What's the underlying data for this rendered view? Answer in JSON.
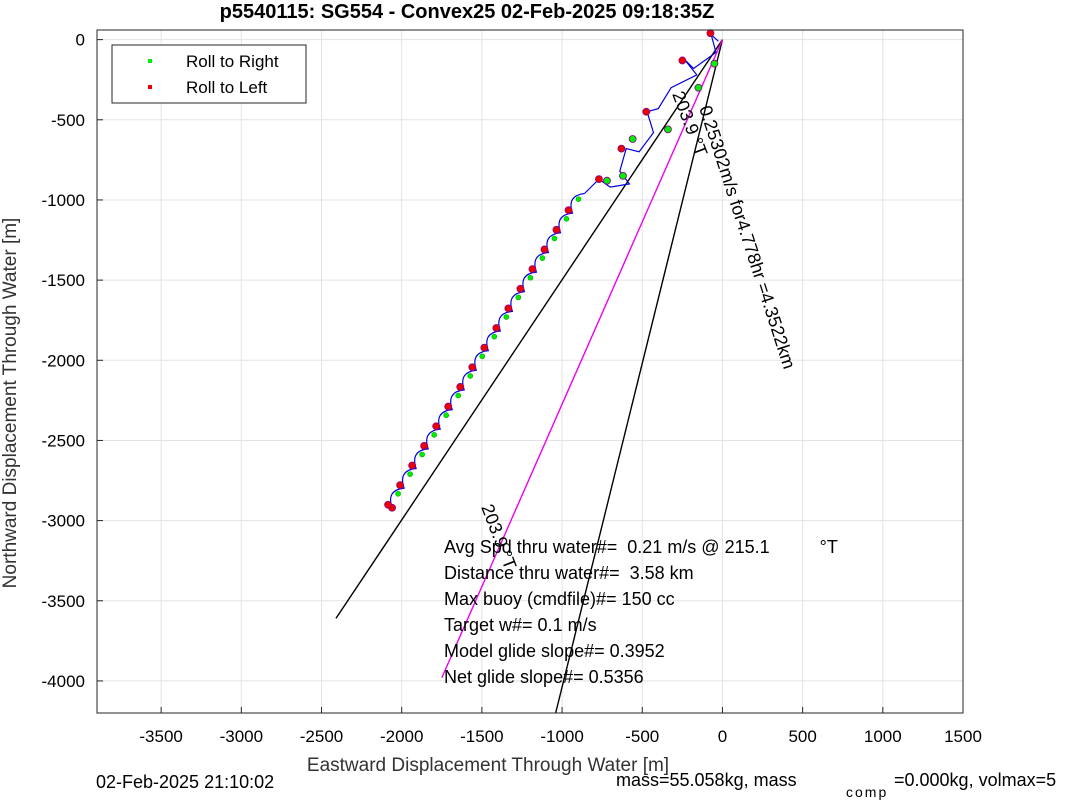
{
  "title": "p5540115: SG554 - Convex25 02-Feb-2025 09:18:35Z",
  "footer": {
    "left": "02-Feb-2025 21:10:02",
    "right_main": "mass=55.058kg, mass",
    "right_sub": "comp",
    "right_tail": "=0.000kg, volmax=5"
  },
  "legend": {
    "placement": "top-left",
    "entries": [
      {
        "label": "Roll to Right",
        "color": "#00ee00"
      },
      {
        "label": "Roll to Left",
        "color": "#ee0000"
      }
    ]
  },
  "annotations": {
    "heading_label": "203.9 °T",
    "current_label": "0.25302m/s for4.778hr =4.3522km",
    "lower_label": "203.9 °T",
    "stats": [
      "Avg Spd thru water#=  0.21 m/s @ 215.1          °T",
      "Distance thru water#=  3.58 km",
      "Max buoy (cmdfile)#= 150 cc",
      "Target w#= 0.1 m/s",
      "Model glide slope#= 0.3952",
      "Net glide slope#= 0.5356"
    ]
  },
  "colors": {
    "track": "#0000dd",
    "current": "#ee00ee",
    "lines": "#000000",
    "grid": "#e3e3e3"
  },
  "chart_data": {
    "type": "scatter",
    "title": "p5540115: SG554 - Convex25 02-Feb-2025 09:18:35Z",
    "xlabel": "Eastward Displacement Through Water [m]",
    "ylabel": "Northward Displacement Through Water [m]",
    "xlim": [
      -3900,
      1500
    ],
    "ylim": [
      -4200,
      60
    ],
    "xticks": [
      -3500,
      -3000,
      -2500,
      -2000,
      -1500,
      -1000,
      -500,
      0,
      500,
      1000,
      1500
    ],
    "yticks": [
      0,
      -500,
      -1000,
      -1500,
      -2000,
      -2500,
      -3000,
      -3500,
      -4000
    ],
    "grid": true,
    "lines": [
      {
        "name": "heading",
        "color": "#000000",
        "x": [
          0,
          -2410
        ],
        "y": [
          0,
          -3610
        ]
      },
      {
        "name": "right",
        "color": "#000000",
        "x": [
          0,
          -1040
        ],
        "y": [
          0,
          -4200
        ]
      },
      {
        "name": "current",
        "color": "#ee00ee",
        "x": [
          0,
          -1750
        ],
        "y": [
          0,
          -3980
        ]
      }
    ],
    "series": [
      {
        "name": "Dive track",
        "color": "#0000dd",
        "x": [
          -25,
          -70,
          -40,
          -180,
          -240,
          -160,
          -320,
          -400,
          -470,
          -430,
          -520,
          -600,
          -640,
          -580,
          -700,
          -770,
          -860
        ],
        "y": [
          -10,
          30,
          -80,
          -180,
          -120,
          -220,
          -300,
          -430,
          -450,
          -580,
          -700,
          -680,
          -820,
          -900,
          -920,
          -870,
          -960
        ]
      },
      {
        "name": "Roll to Right",
        "color": "#00ee00",
        "x": [
          -50,
          -150,
          -340,
          -560,
          -620,
          -720
        ],
        "y": [
          -150,
          -300,
          -560,
          -620,
          -850,
          -880
        ]
      },
      {
        "name": "Roll to Left",
        "color": "#ee0000",
        "x": [
          -75,
          -250,
          -475,
          -630,
          -770,
          -2060
        ],
        "y": [
          40,
          -130,
          -450,
          -680,
          -870,
          -2920
        ]
      }
    ]
  }
}
